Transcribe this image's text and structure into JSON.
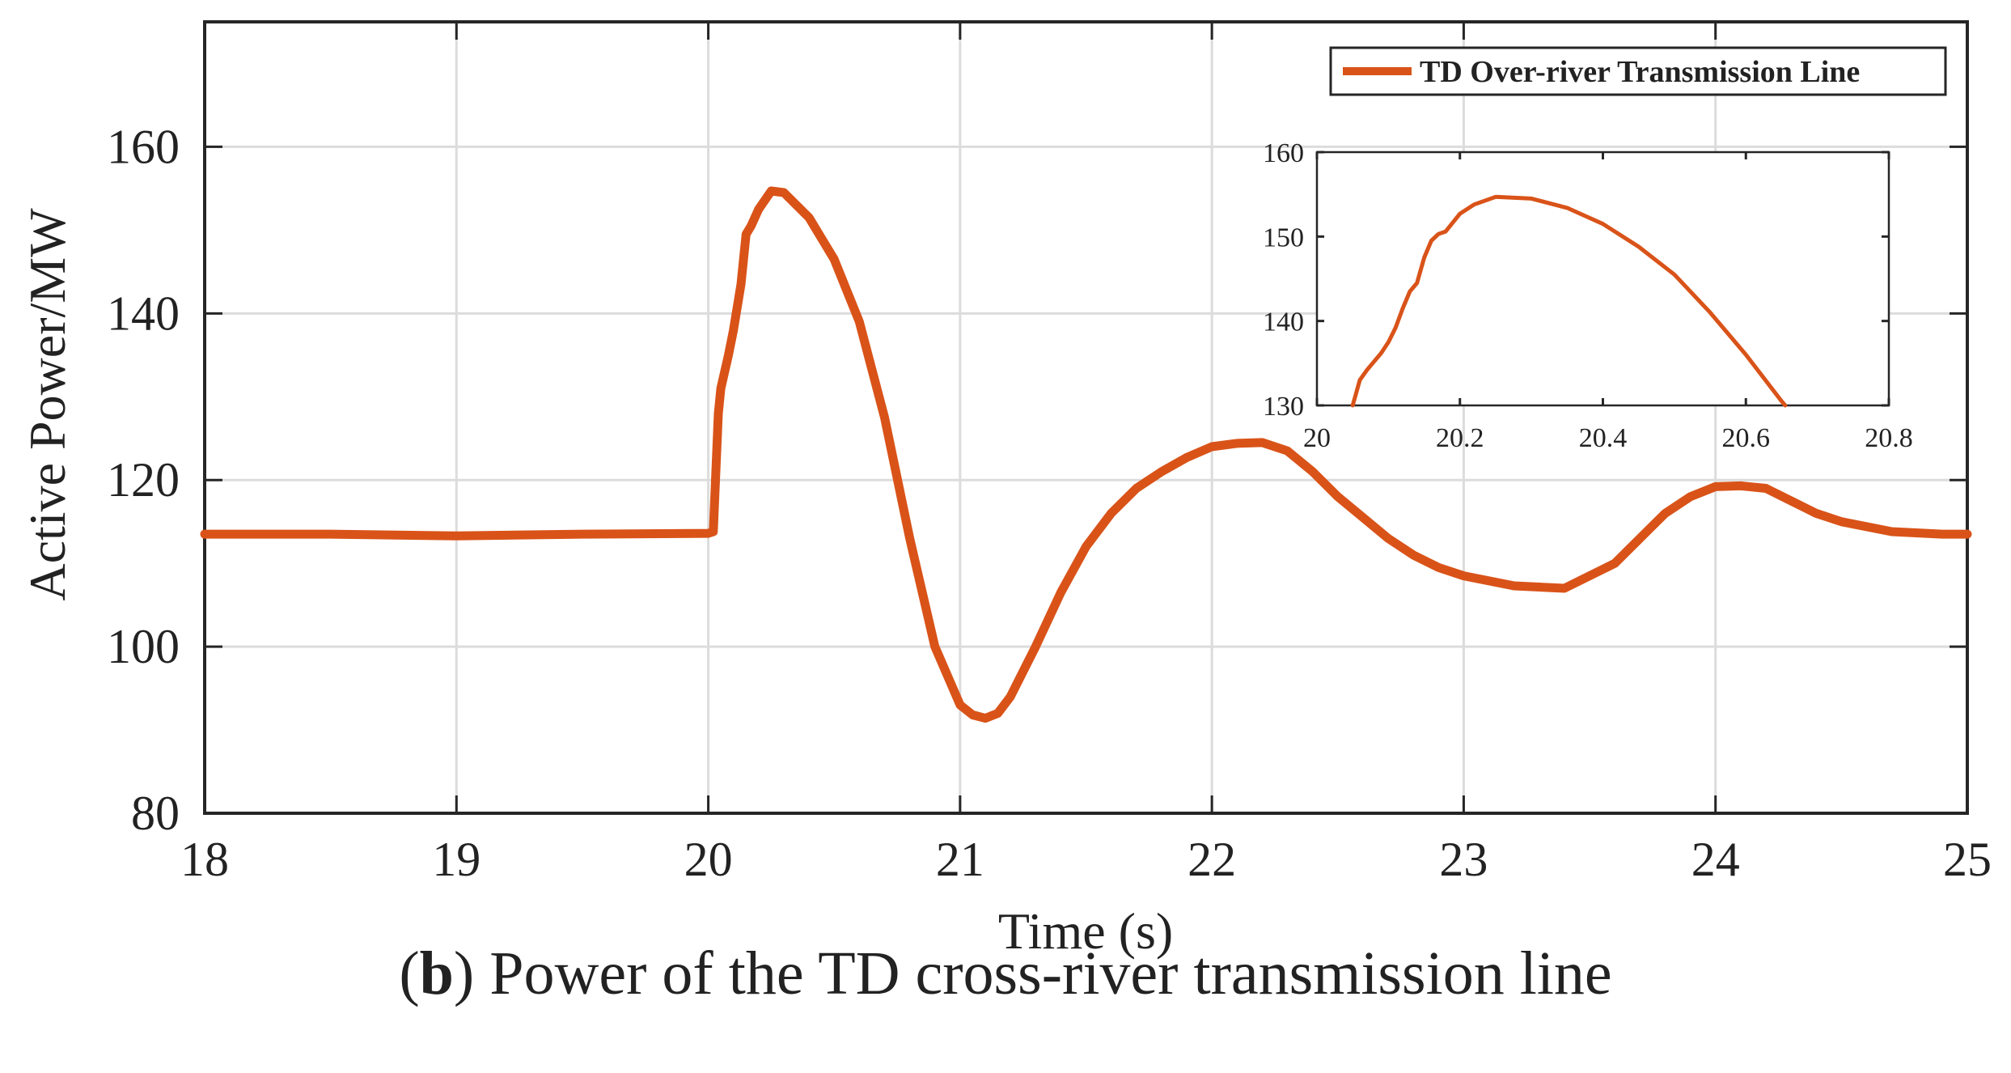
{
  "chart_data": {
    "type": "line",
    "xlabel": "Time (s)",
    "ylabel": "Active Power/MW",
    "xlim": [
      18,
      25
    ],
    "ylim": [
      80,
      175
    ],
    "xticks": [
      "18",
      "19",
      "20",
      "21",
      "22",
      "23",
      "24",
      "25"
    ],
    "yticks": [
      "80",
      "100",
      "120",
      "140",
      "160"
    ],
    "grid": true,
    "legend_position": "top-right",
    "color": "#D95319",
    "series": [
      {
        "name": "TD Over-river Transmission Line",
        "x": [
          18.0,
          18.5,
          19.0,
          19.5,
          20.0,
          20.02,
          20.04,
          20.05,
          20.08,
          20.1,
          20.13,
          20.15,
          20.17,
          20.2,
          20.25,
          20.3,
          20.4,
          20.5,
          20.6,
          20.7,
          20.8,
          20.9,
          21.0,
          21.05,
          21.1,
          21.15,
          21.2,
          21.3,
          21.4,
          21.5,
          21.6,
          21.7,
          21.8,
          21.9,
          22.0,
          22.1,
          22.2,
          22.3,
          22.4,
          22.5,
          22.6,
          22.7,
          22.8,
          22.9,
          23.0,
          23.2,
          23.4,
          23.6,
          23.7,
          23.8,
          23.9,
          24.0,
          24.1,
          24.2,
          24.3,
          24.4,
          24.5,
          24.7,
          24.9,
          25.0
        ],
        "y": [
          113.5,
          113.5,
          113.3,
          113.5,
          113.6,
          113.8,
          128.0,
          131.0,
          135.0,
          138.0,
          143.5,
          149.5,
          150.5,
          152.5,
          154.7,
          154.5,
          151.5,
          146.5,
          139.0,
          127.5,
          113.0,
          100.0,
          93.0,
          91.8,
          91.4,
          92.0,
          94.0,
          100.0,
          106.5,
          112.0,
          116.0,
          119.0,
          121.0,
          122.7,
          124.0,
          124.4,
          124.5,
          123.5,
          121.0,
          118.0,
          115.5,
          113.0,
          111.0,
          109.5,
          108.5,
          107.3,
          107.0,
          110.0,
          113.0,
          116.0,
          118.0,
          119.2,
          119.3,
          119.0,
          117.5,
          116.0,
          115.0,
          113.8,
          113.5,
          113.5
        ]
      }
    ],
    "inset": {
      "xlim": [
        20,
        20.8
      ],
      "ylim": [
        130,
        160
      ],
      "xticks": [
        "20",
        "20.2",
        "20.4",
        "20.6",
        "20.8"
      ],
      "yticks": [
        "130",
        "140",
        "150",
        "160"
      ],
      "x": [
        20.05,
        20.055,
        20.06,
        20.07,
        20.08,
        20.09,
        20.1,
        20.11,
        20.12,
        20.13,
        20.14,
        20.15,
        20.16,
        20.17,
        20.18,
        20.2,
        20.22,
        20.25,
        20.3,
        20.35,
        20.4,
        20.45,
        20.5,
        20.55,
        20.6,
        20.65,
        20.655
      ],
      "y": [
        130.0,
        131.5,
        133.0,
        134.2,
        135.2,
        136.2,
        137.5,
        139.2,
        141.5,
        143.5,
        144.5,
        147.5,
        149.5,
        150.3,
        150.6,
        152.7,
        153.8,
        154.7,
        154.5,
        153.4,
        151.5,
        148.8,
        145.5,
        141.0,
        136.0,
        130.5,
        130.0
      ]
    }
  },
  "legend": {
    "label": "TD Over-river Transmission Line"
  },
  "caption": {
    "letter": "b",
    "text": "Power of the TD cross-river transmission line"
  }
}
